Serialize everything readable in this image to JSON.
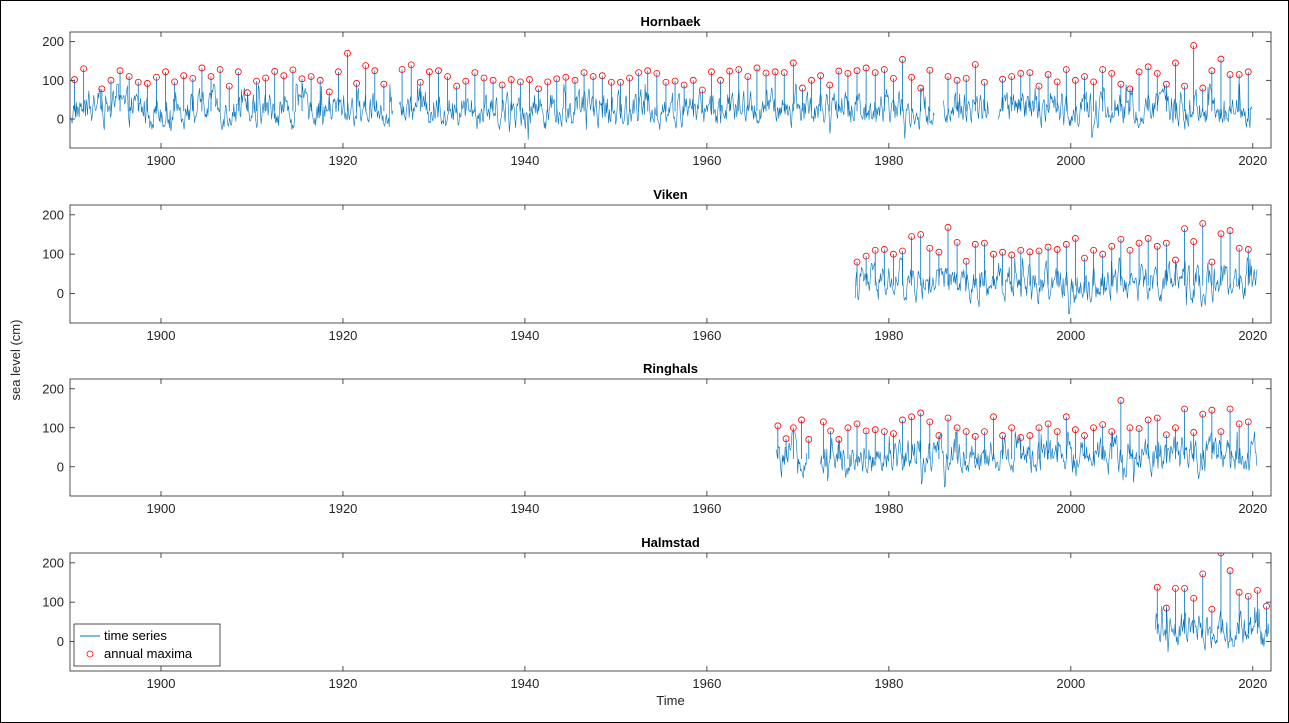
{
  "chart_data": [
    {
      "type": "line",
      "title": "Hornbaek",
      "xlim": [
        1890,
        2022
      ],
      "ylim": [
        -75,
        225
      ],
      "xticks": [
        1900,
        1920,
        1940,
        1960,
        1980,
        2000,
        2020
      ],
      "yticks": [
        0,
        100,
        200
      ],
      "coverage": [
        [
          1890,
          1925.5
        ],
        [
          1926.2,
          1985
        ],
        [
          1986,
          1991
        ],
        [
          1992,
          2020
        ]
      ],
      "series": [
        {
          "kind": "time_series",
          "color": "#0072BD"
        },
        {
          "kind": "annual_maxima",
          "color": "#FF0000",
          "x": [
            1890.5,
            1891.5,
            1893.5,
            1894.5,
            1895.5,
            1896.5,
            1897.5,
            1898.5,
            1899.5,
            1900.5,
            1901.5,
            1902.5,
            1903.5,
            1904.5,
            1905.5,
            1906.5,
            1907.5,
            1908.5,
            1909.5,
            1910.5,
            1911.5,
            1912.5,
            1913.5,
            1914.5,
            1915.5,
            1916.5,
            1917.5,
            1918.5,
            1919.5,
            1920.5,
            1921.5,
            1922.5,
            1923.5,
            1924.5,
            1926.5,
            1927.5,
            1928.5,
            1929.5,
            1930.5,
            1931.5,
            1932.5,
            1933.5,
            1934.5,
            1935.5,
            1936.5,
            1937.5,
            1938.5,
            1939.5,
            1940.5,
            1941.5,
            1942.5,
            1943.5,
            1944.5,
            1945.5,
            1946.5,
            1947.5,
            1948.5,
            1949.5,
            1950.5,
            1951.5,
            1952.5,
            1953.5,
            1954.5,
            1955.5,
            1956.5,
            1957.5,
            1958.5,
            1959.5,
            1960.5,
            1961.5,
            1962.5,
            1963.5,
            1964.5,
            1965.5,
            1966.5,
            1967.5,
            1968.5,
            1969.5,
            1970.5,
            1971.5,
            1972.5,
            1973.5,
            1974.5,
            1975.5,
            1976.5,
            1977.5,
            1978.5,
            1979.5,
            1980.5,
            1981.5,
            1982.5,
            1983.5,
            1984.5,
            1986.5,
            1987.5,
            1988.5,
            1989.5,
            1990.5,
            1992.5,
            1993.5,
            1994.5,
            1995.5,
            1996.5,
            1997.5,
            1998.5,
            1999.5,
            2000.5,
            2001.5,
            2002.5,
            2003.5,
            2004.5,
            2005.5,
            2006.5,
            2007.5,
            2008.5,
            2009.5,
            2010.5,
            2011.5,
            2012.5,
            2013.5,
            2014.5,
            2015.5,
            2016.5,
            2017.5,
            2018.5,
            2019.5
          ],
          "y": [
            102,
            130,
            78,
            100,
            125,
            110,
            95,
            92,
            108,
            122,
            96,
            112,
            105,
            132,
            110,
            128,
            85,
            122,
            68,
            98,
            106,
            123,
            112,
            127,
            104,
            110,
            100,
            70,
            122,
            170,
            92,
            138,
            125,
            90,
            128,
            140,
            95,
            122,
            125,
            110,
            85,
            98,
            120,
            106,
            100,
            88,
            102,
            96,
            102,
            78,
            96,
            104,
            108,
            100,
            120,
            110,
            112,
            95,
            95,
            106,
            120,
            125,
            118,
            95,
            98,
            88,
            100,
            75,
            122,
            100,
            124,
            128,
            110,
            132,
            119,
            122,
            120,
            145,
            80,
            100,
            112,
            88,
            124,
            118,
            125,
            132,
            120,
            128,
            105,
            154,
            108,
            80,
            126,
            110,
            100,
            105,
            141,
            95,
            103,
            110,
            118,
            120,
            85,
            115,
            96,
            128,
            100,
            110,
            96,
            128,
            118,
            90,
            78,
            122,
            135,
            118,
            90,
            145,
            85,
            190,
            80,
            125,
            155,
            115,
            115,
            122
          ]
        }
      ]
    },
    {
      "type": "line",
      "title": "Viken",
      "xlim": [
        1890,
        2022
      ],
      "ylim": [
        -75,
        225
      ],
      "xticks": [
        1900,
        1920,
        1940,
        1960,
        1980,
        2000,
        2020
      ],
      "yticks": [
        0,
        100,
        200
      ],
      "coverage": [
        [
          1976.3,
          2020.5
        ]
      ],
      "series": [
        {
          "kind": "time_series",
          "color": "#0072BD"
        },
        {
          "kind": "annual_maxima",
          "color": "#FF0000",
          "x": [
            1976.5,
            1977.5,
            1978.5,
            1979.5,
            1980.5,
            1981.5,
            1982.5,
            1983.5,
            1984.5,
            1985.5,
            1986.5,
            1987.5,
            1988.5,
            1989.5,
            1990.5,
            1991.5,
            1992.5,
            1993.5,
            1994.5,
            1995.5,
            1996.5,
            1997.5,
            1998.5,
            1999.5,
            2000.5,
            2001.5,
            2002.5,
            2003.5,
            2004.5,
            2005.5,
            2006.5,
            2007.5,
            2008.5,
            2009.5,
            2010.5,
            2011.5,
            2012.5,
            2013.5,
            2014.5,
            2015.5,
            2016.5,
            2017.5,
            2018.5,
            2019.5
          ],
          "y": [
            80,
            95,
            110,
            112,
            100,
            108,
            145,
            150,
            115,
            105,
            168,
            130,
            82,
            125,
            128,
            100,
            105,
            98,
            110,
            106,
            108,
            118,
            112,
            125,
            140,
            90,
            110,
            100,
            120,
            138,
            110,
            128,
            140,
            120,
            128,
            85,
            165,
            132,
            178,
            80,
            152,
            160,
            115,
            112
          ]
        }
      ]
    },
    {
      "type": "line",
      "title": "Ringhals",
      "xlim": [
        1890,
        2022
      ],
      "ylim": [
        -75,
        225
      ],
      "xticks": [
        1900,
        1920,
        1940,
        1960,
        1980,
        2000,
        2020
      ],
      "yticks": [
        0,
        100,
        200
      ],
      "coverage": [
        [
          1967.6,
          1971
        ],
        [
          1972.5,
          2020.5
        ]
      ],
      "series": [
        {
          "kind": "time_series",
          "color": "#0072BD"
        },
        {
          "kind": "annual_maxima",
          "color": "#FF0000",
          "x": [
            1967.8,
            1968.7,
            1969.5,
            1970.4,
            1971.2,
            1972.8,
            1973.6,
            1974.5,
            1975.5,
            1976.5,
            1977.5,
            1978.5,
            1979.5,
            1980.5,
            1981.5,
            1982.5,
            1983.5,
            1984.5,
            1985.5,
            1986.5,
            1987.5,
            1988.5,
            1989.5,
            1990.5,
            1991.5,
            1992.5,
            1993.5,
            1994.5,
            1995.5,
            1996.5,
            1997.5,
            1998.5,
            1999.5,
            2000.5,
            2001.5,
            2002.5,
            2003.5,
            2004.5,
            2005.5,
            2006.5,
            2007.5,
            2008.5,
            2009.5,
            2010.5,
            2011.5,
            2012.5,
            2013.5,
            2014.5,
            2015.5,
            2016.5,
            2017.5,
            2018.5,
            2019.5
          ],
          "y": [
            105,
            72,
            100,
            120,
            70,
            115,
            92,
            70,
            100,
            110,
            92,
            95,
            90,
            85,
            120,
            128,
            138,
            115,
            80,
            125,
            100,
            90,
            78,
            90,
            128,
            80,
            100,
            75,
            80,
            100,
            110,
            90,
            128,
            95,
            80,
            100,
            108,
            90,
            170,
            100,
            98,
            120,
            125,
            82,
            100,
            148,
            88,
            135,
            145,
            90,
            148,
            110,
            115
          ]
        }
      ]
    },
    {
      "type": "line",
      "title": "Halmstad",
      "xlabel": "Time",
      "xlim": [
        1890,
        2022
      ],
      "ylim": [
        -75,
        225
      ],
      "xticks": [
        1900,
        1920,
        1940,
        1960,
        1980,
        2000,
        2020
      ],
      "yticks": [
        0,
        100,
        200
      ],
      "coverage": [
        [
          2009.3,
          2021.8
        ]
      ],
      "series": [
        {
          "kind": "time_series",
          "color": "#0072BD"
        },
        {
          "kind": "annual_maxima",
          "color": "#FF0000",
          "x": [
            2009.5,
            2010.5,
            2011.5,
            2012.5,
            2013.5,
            2014.5,
            2015.5,
            2016.5,
            2017.5,
            2018.5,
            2019.5,
            2020.5,
            2021.5
          ],
          "y": [
            138,
            85,
            135,
            135,
            110,
            172,
            82,
            225,
            180,
            125,
            115,
            130,
            90
          ]
        }
      ]
    }
  ],
  "figure": {
    "ylabel": "sea level (cm)"
  },
  "legend": {
    "position": "bottom-left of Halmstad panel",
    "entries": [
      "time series",
      "annual maxima"
    ]
  }
}
